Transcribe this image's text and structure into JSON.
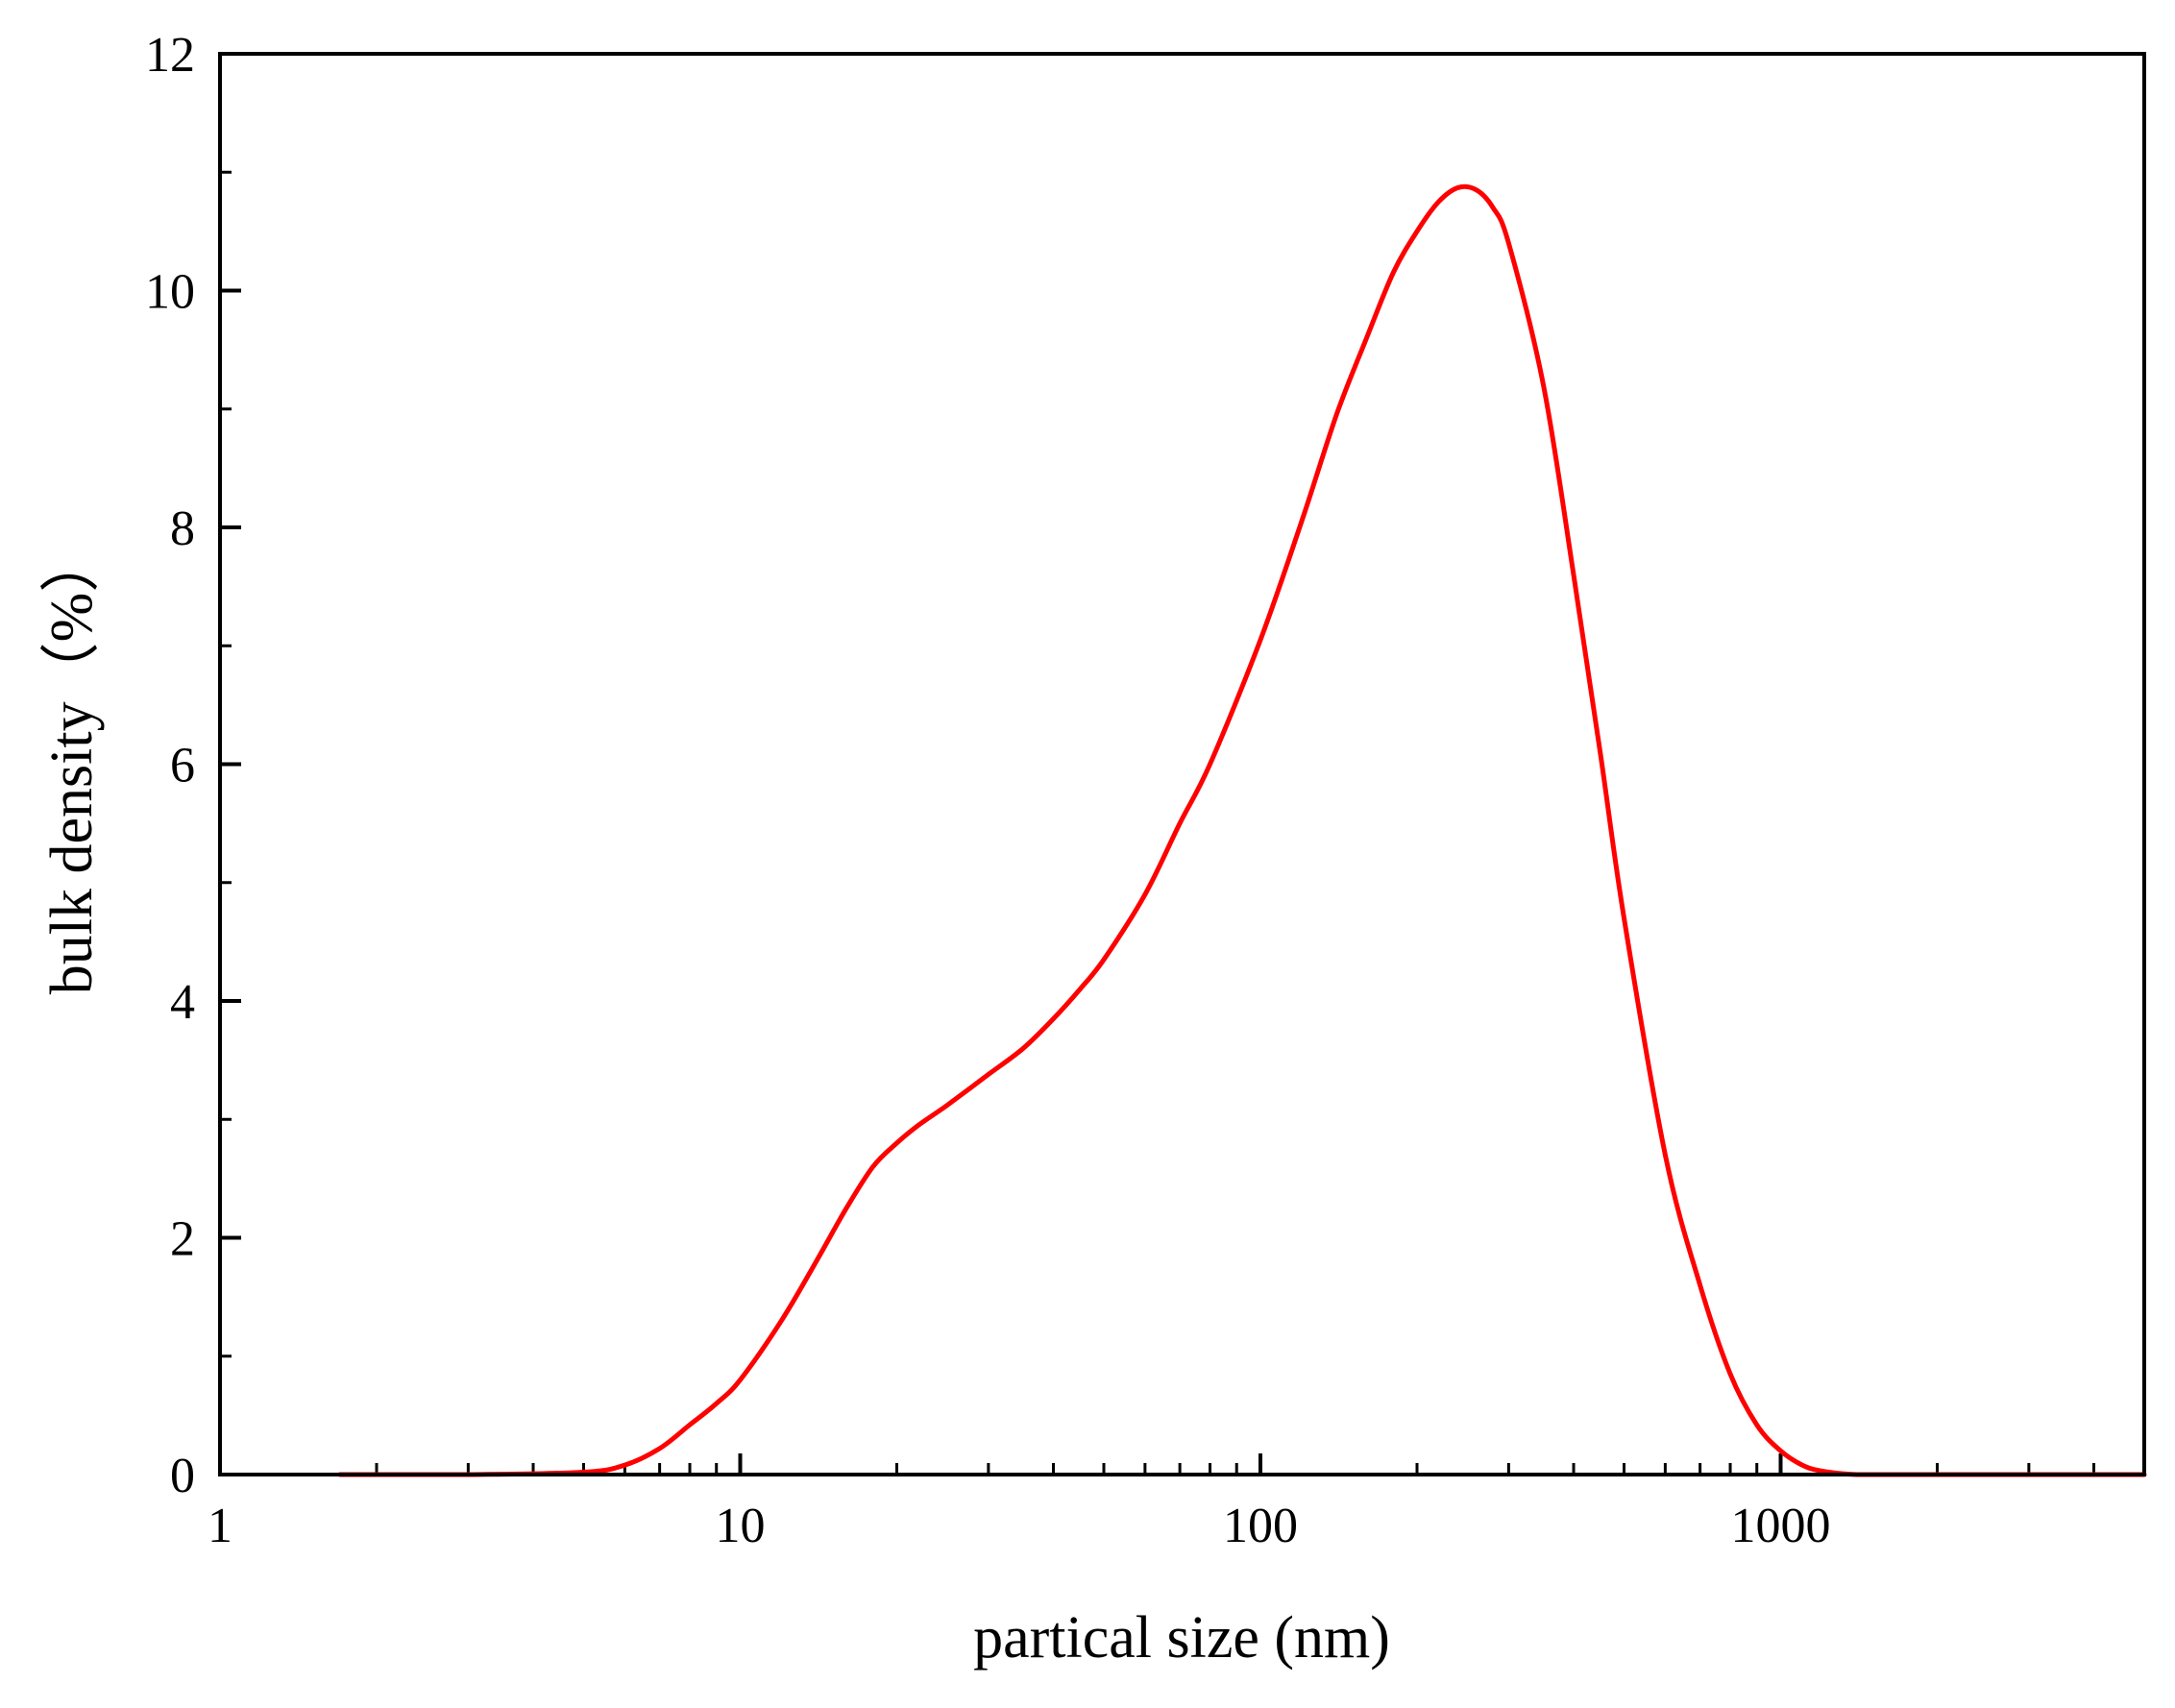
{
  "chart_data": {
    "type": "line",
    "title": "",
    "xlabel": "partical size (nm)",
    "ylabel": "bulk density（%）",
    "xscale": "log",
    "xlim": [
      1,
      5000
    ],
    "ylim": [
      0,
      12
    ],
    "x_ticks": [
      {
        "value": 1,
        "label": "1"
      },
      {
        "value": 10,
        "label": "10"
      },
      {
        "value": 100,
        "label": "100"
      },
      {
        "value": 1000,
        "label": "1000"
      }
    ],
    "y_ticks": [
      {
        "value": 0,
        "label": "0"
      },
      {
        "value": 2,
        "label": "2"
      },
      {
        "value": 4,
        "label": "4"
      },
      {
        "value": 6,
        "label": "6"
      },
      {
        "value": 8,
        "label": "8"
      },
      {
        "value": 10,
        "label": "10"
      },
      {
        "value": 12,
        "label": "12"
      }
    ],
    "grid": false,
    "legend": "none",
    "series": [
      {
        "color": "#ff0000",
        "x": [
          1.7,
          3,
          5,
          6,
          7,
          8,
          9,
          10,
          12,
          14,
          16,
          18,
          20,
          22,
          25,
          30,
          35,
          40,
          45,
          50,
          60,
          70,
          80,
          100,
          120,
          140,
          160,
          180,
          200,
          220,
          240,
          260,
          280,
          300,
          350,
          400,
          450,
          500,
          600,
          700,
          800,
          900,
          1000,
          1100,
          1200,
          1400,
          1700,
          2500,
          5000
        ],
        "values": [
          0,
          0,
          0.02,
          0.08,
          0.22,
          0.42,
          0.6,
          0.8,
          1.3,
          1.8,
          2.25,
          2.6,
          2.8,
          2.95,
          3.12,
          3.38,
          3.6,
          3.85,
          4.1,
          4.35,
          4.9,
          5.5,
          6.0,
          7.05,
          8.05,
          8.95,
          9.6,
          10.15,
          10.5,
          10.75,
          10.87,
          10.85,
          10.7,
          10.4,
          9.2,
          7.6,
          6.1,
          4.7,
          2.7,
          1.6,
          0.85,
          0.42,
          0.2,
          0.08,
          0.03,
          0,
          0,
          0,
          0
        ]
      }
    ]
  }
}
